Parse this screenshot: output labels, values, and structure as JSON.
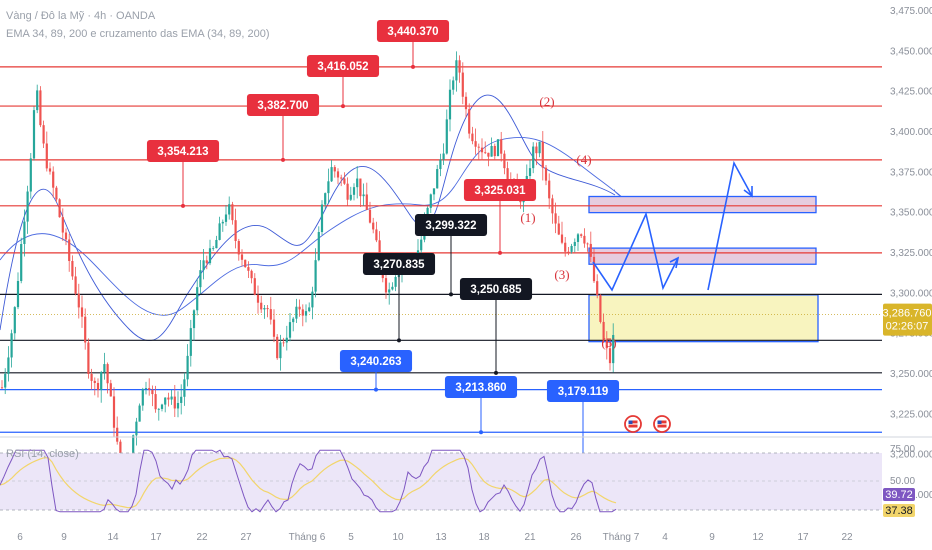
{
  "header": {
    "symbol_line": "Vàng / Đô la Mỹ · 4h · OANDA",
    "indicator_line": "EMA 34, 89, 200 e cruzamento das EMA (34, 89, 200)"
  },
  "rsi_panel": {
    "label": "RSI (14, close)",
    "value_purple": "39.72",
    "value_yellow": "37.38"
  },
  "last_price": {
    "value": "3,286.760",
    "countdown": "02:26:07"
  },
  "colors": {
    "bull": "#26a69a",
    "bear": "#ef5350",
    "red_label": "#e8303e",
    "blue_label": "#2962ff",
    "black_label": "#131722",
    "zone_yellow": "#f7f3b8",
    "zone_pink": "#e3c7dc",
    "rsi_line": "#7e57c2",
    "rsi_ma": "#f2d56b"
  },
  "chart_data": {
    "type": "candlestick",
    "ylim": [
      3165,
      3480
    ],
    "y_ticks": [
      "3,475.000",
      "3,450.000",
      "3,425.000",
      "3,400.000",
      "3,375.000",
      "3,350.000",
      "3,325.000",
      "3,300.000",
      "3,275.000",
      "3,250.000",
      "3,225.000",
      "3,200.000",
      "3,175.000"
    ],
    "x_ticks": [
      "6",
      "9",
      "14",
      "17",
      "22",
      "27",
      "Tháng 6",
      "5",
      "10",
      "13",
      "18",
      "21",
      "26",
      "Tháng 7",
      "4",
      "9",
      "12",
      "17",
      "22"
    ],
    "rsi_ticks": [
      "75.00",
      "50.00",
      "25.00"
    ],
    "red_levels": [
      {
        "label": "3,440.370",
        "value": 3440.37
      },
      {
        "label": "3,416.052",
        "value": 3416.052
      },
      {
        "label": "3,382.700",
        "value": 3382.7
      },
      {
        "label": "3,354.213",
        "value": 3354.213
      },
      {
        "label": "3,325.031",
        "value": 3325.031
      }
    ],
    "black_levels": [
      {
        "label": "3,299.322",
        "value": 3299.322
      },
      {
        "label": "3,270.835",
        "value": 3270.835
      },
      {
        "label": "3,250.685",
        "value": 3250.685
      }
    ],
    "blue_levels": [
      {
        "label": "3,240.263",
        "value": 3240.263
      },
      {
        "label": "3,213.860",
        "value": 3213.86
      },
      {
        "label": "3,179.119",
        "value": 3179.119
      }
    ],
    "wave_labels": [
      "(1)",
      "(2)",
      "(3)",
      "(4)",
      "(5)"
    ],
    "zones": [
      {
        "kind": "pink",
        "from": 3350,
        "to": 3360
      },
      {
        "kind": "pink",
        "from": 3318,
        "to": 3328
      },
      {
        "kind": "yellow",
        "from": 3270,
        "to": 3299
      }
    ],
    "last_price": 3286.76
  }
}
